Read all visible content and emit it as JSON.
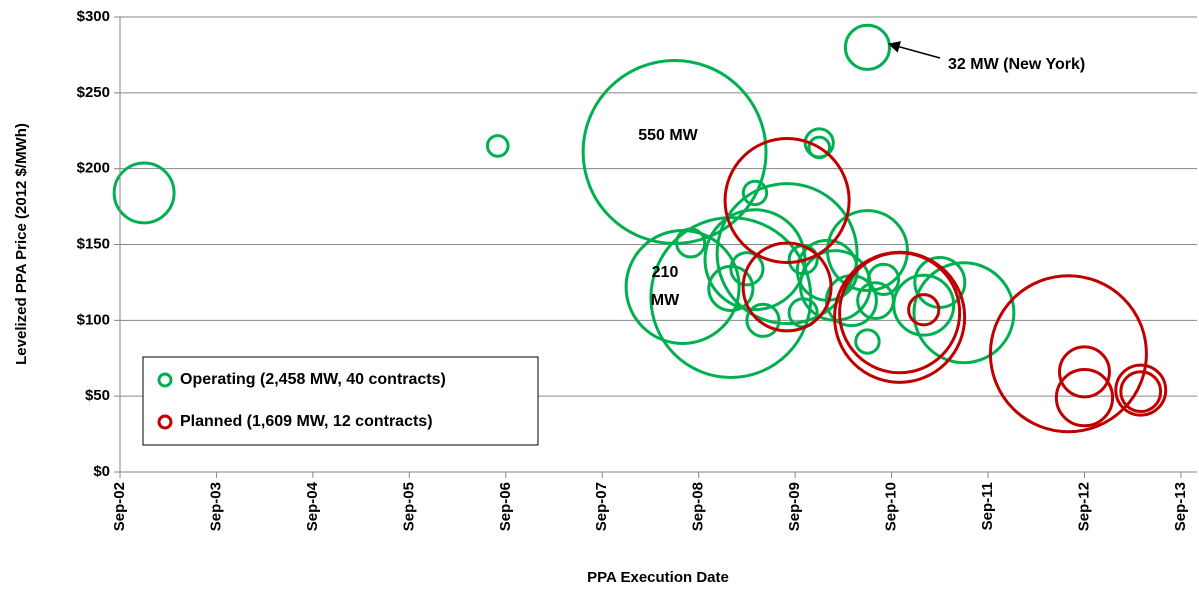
{
  "chart_data": {
    "type": "bubble",
    "x_label": "PPA Execution Date",
    "y_label": "Levelized PPA Price (2012 $/MWh)",
    "xlim": [
      "2002-09",
      "2013-11"
    ],
    "xticks": [
      {
        "value": "2002-09",
        "label": "Sep-02"
      },
      {
        "value": "2003-09",
        "label": "Sep-03"
      },
      {
        "value": "2004-09",
        "label": "Sep-04"
      },
      {
        "value": "2005-09",
        "label": "Sep-05"
      },
      {
        "value": "2006-09",
        "label": "Sep-06"
      },
      {
        "value": "2007-09",
        "label": "Sep-07"
      },
      {
        "value": "2008-09",
        "label": "Sep-08"
      },
      {
        "value": "2009-09",
        "label": "Sep-09"
      },
      {
        "value": "2010-09",
        "label": "Sep-10"
      },
      {
        "value": "2011-09",
        "label": "Sep-11"
      },
      {
        "value": "2012-09",
        "label": "Sep-12"
      },
      {
        "value": "2013-09",
        "label": "Sep-13"
      }
    ],
    "ylim": [
      0,
      300
    ],
    "yticks": [
      {
        "value": 0,
        "label": "$0"
      },
      {
        "value": 50,
        "label": "$50"
      },
      {
        "value": 100,
        "label": "$100"
      },
      {
        "value": 150,
        "label": "$150"
      },
      {
        "value": 200,
        "label": "$200"
      },
      {
        "value": 250,
        "label": "$250"
      },
      {
        "value": 300,
        "label": "$300"
      }
    ],
    "grid": true,
    "legend": "lower left",
    "series": [
      {
        "name": "Operating (2,458 MW, 40 contracts)",
        "color": "#00b050",
        "x": [
          "2002-12",
          "2006-08",
          "2008-06",
          "2008-07",
          "2010-06",
          "2009-12",
          "2009-12",
          "2009-04",
          "2009-08",
          "2009-04",
          "2009-01",
          "2008-08",
          "2009-01",
          "2009-03",
          "2009-05",
          "2009-10",
          "2010-01",
          "2010-06",
          "2010-02",
          "2010-04",
          "2010-07",
          "2010-06",
          "2011-03",
          "2011-06",
          "2011-01",
          "2010-08",
          "2009-10"
        ],
        "values": [
          184,
          215,
          211,
          122,
          280,
          217,
          214,
          184,
          144,
          140,
          115,
          151,
          121,
          134,
          100,
          105,
          133,
          146,
          123,
          113,
          113,
          86,
          125,
          105,
          110,
          127,
          140
        ],
        "sizes": [
          59,
          7,
          550,
          210,
          32,
          13,
          7,
          9,
          322,
          164,
          420,
          13,
          32,
          17,
          17,
          13,
          59,
          105,
          80,
          41,
          21,
          9,
          41,
          164,
          59,
          15,
          13
        ]
      },
      {
        "name": "Planned (1,609 MW, 12 contracts)",
        "color": "#c00000",
        "x": [
          "2009-08",
          "2009-08",
          "2010-10",
          "2010-10",
          "2011-01",
          "2012-07",
          "2012-09",
          "2012-09",
          "2013-04",
          "2013-04"
        ],
        "values": [
          179,
          122,
          102,
          105,
          107,
          78,
          66,
          49,
          54,
          53
        ],
        "sizes": [
          253,
          127,
          278,
          237,
          15,
          400,
          41,
          52,
          41,
          26
        ]
      }
    ],
    "annotations": [
      {
        "text": "550 MW"
      },
      {
        "lines": [
          "210",
          "MW"
        ]
      },
      {
        "text": "32 MW (New York)"
      }
    ]
  }
}
